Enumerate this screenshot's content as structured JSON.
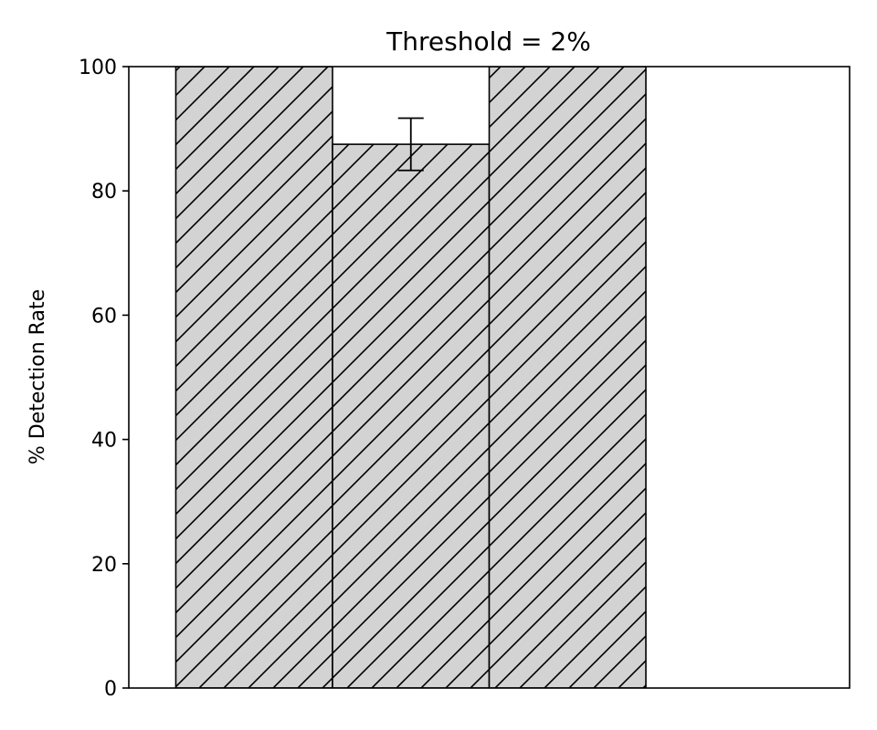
{
  "chart_data": {
    "type": "bar",
    "title": "Threshold = 2%",
    "xlabel": "",
    "ylabel": "% Detection Rate",
    "ylim": [
      0,
      100
    ],
    "yticks": [
      0,
      20,
      40,
      60,
      80,
      100
    ],
    "xlim": [
      -0.8,
      3.8
    ],
    "bar_width": 1.0,
    "bar_fill": "#d3d3d3",
    "bar_edge": "#000000",
    "hatch": "diagonal",
    "grid": false,
    "bars": [
      {
        "x": 0,
        "value": 100,
        "error": null
      },
      {
        "x": 1,
        "value": 87.5,
        "error": 4.2
      },
      {
        "x": 2,
        "value": 100,
        "error": null
      }
    ]
  }
}
